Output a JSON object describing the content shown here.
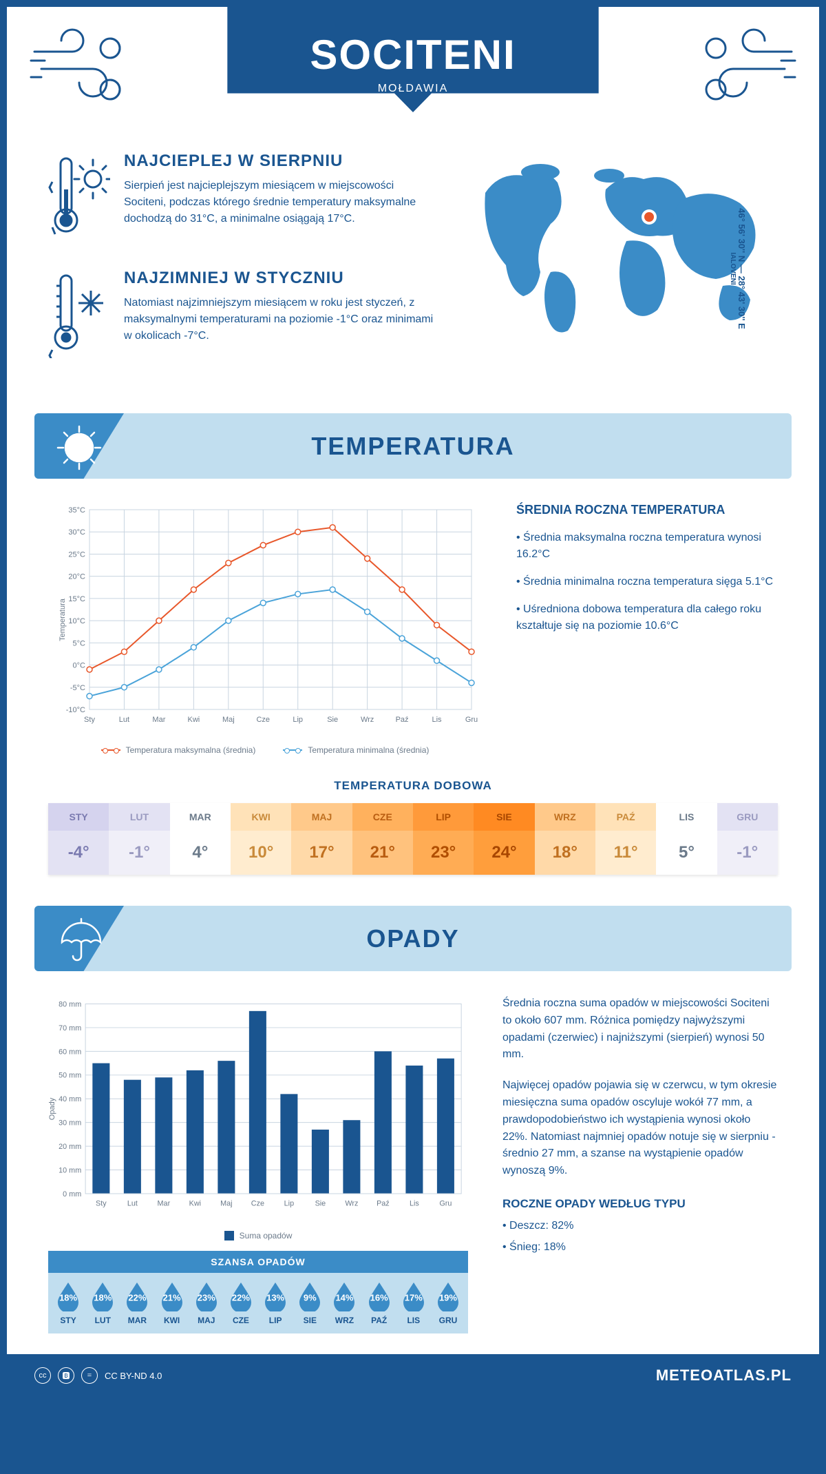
{
  "header": {
    "city": "SOCITENI",
    "country": "MOŁDAWIA"
  },
  "coords": {
    "text": "46° 56' 30'' N — 28° 43' 30'' E",
    "region": "IALOVENI"
  },
  "warmest": {
    "title": "NAJCIEPLEJ W SIERPNIU",
    "text": "Sierpień jest najcieplejszym miesiącem w miejscowości Sociteni, podczas którego średnie temperatury maksymalne dochodzą do 31°C, a minimalne osiągają 17°C."
  },
  "coldest": {
    "title": "NAJZIMNIEJ W STYCZNIU",
    "text": "Natomiast najzimniejszym miesiącem w roku jest styczeń, z maksymalnymi temperaturami na poziomie -1°C oraz minimami w okolicach -7°C."
  },
  "temp_section": {
    "title": "TEMPERATURA",
    "side_title": "ŚREDNIA ROCZNA TEMPERATURA",
    "bullets": [
      "• Średnia maksymalna roczna temperatura wynosi 16.2°C",
      "• Średnia minimalna roczna temperatura sięga 5.1°C",
      "• Uśredniona dobowa temperatura dla całego roku kształtuje się na poziomie 10.6°C"
    ],
    "chart": {
      "type": "line",
      "months": [
        "Sty",
        "Lut",
        "Mar",
        "Kwi",
        "Maj",
        "Cze",
        "Lip",
        "Sie",
        "Wrz",
        "Paź",
        "Lis",
        "Gru"
      ],
      "ylabel": "Temperatura",
      "ylim": [
        -10,
        35
      ],
      "ytick_step": 5,
      "ytick_suffix": "°C",
      "grid_color": "#c8d4e0",
      "background": "#ffffff",
      "series": [
        {
          "name": "Temperatura maksymalna (średnia)",
          "color": "#e8572a",
          "values": [
            -1,
            3,
            10,
            17,
            23,
            27,
            30,
            31,
            24,
            17,
            9,
            3
          ]
        },
        {
          "name": "Temperatura minimalna (średnia)",
          "color": "#4aa3d9",
          "values": [
            -7,
            -5,
            -1,
            4,
            10,
            14,
            16,
            17,
            12,
            6,
            1,
            -4
          ]
        }
      ],
      "marker": "circle",
      "marker_fill": "#ffffff",
      "line_width": 2,
      "label_fontsize": 11
    },
    "daily": {
      "title": "TEMPERATURA DOBOWA",
      "months": [
        "STY",
        "LUT",
        "MAR",
        "KWI",
        "MAJ",
        "CZE",
        "LIP",
        "SIE",
        "WRZ",
        "PAŹ",
        "LIS",
        "GRU"
      ],
      "values": [
        "-4°",
        "-1°",
        "4°",
        "10°",
        "17°",
        "21°",
        "23°",
        "24°",
        "18°",
        "11°",
        "5°",
        "-1°"
      ],
      "header_colors": [
        "#d5d3ee",
        "#e3e2f3",
        "#ffffff",
        "#ffe2b8",
        "#ffc98a",
        "#ffb15d",
        "#ff9a3a",
        "#ff8a22",
        "#ffc98a",
        "#ffe2b8",
        "#ffffff",
        "#e3e2f3"
      ],
      "value_colors": [
        "#e3e2f3",
        "#f0eff8",
        "#ffffff",
        "#ffeccf",
        "#ffd9a8",
        "#ffc27d",
        "#ffac54",
        "#ff9e3c",
        "#ffd9a8",
        "#ffeccf",
        "#ffffff",
        "#f0eff8"
      ],
      "text_colors": [
        "#7a7ab0",
        "#9a9ac0",
        "#6b7a8a",
        "#c98a3a",
        "#c07020",
        "#b85c10",
        "#b04e00",
        "#a84600",
        "#c07020",
        "#c98a3a",
        "#6b7a8a",
        "#9a9ac0"
      ]
    }
  },
  "precip_section": {
    "title": "OPADY",
    "para1": "Średnia roczna suma opadów w miejscowości Sociteni to około 607 mm. Różnica pomiędzy najwyższymi opadami (czerwiec) i najniższymi (sierpień) wynosi 50 mm.",
    "para2": "Najwięcej opadów pojawia się w czerwcu, w tym okresie miesięczna suma opadów oscyluje wokół 77 mm, a prawdopodobieństwo ich wystąpienia wynosi około 22%. Natomiast najmniej opadów notuje się w sierpniu - średnio 27 mm, a szanse na wystąpienie opadów wynoszą 9%.",
    "type_title": "ROCZNE OPADY WEDŁUG TYPU",
    "types": [
      "• Deszcz: 82%",
      "• Śnieg: 18%"
    ],
    "chart": {
      "type": "bar",
      "months": [
        "Sty",
        "Lut",
        "Mar",
        "Kwi",
        "Maj",
        "Cze",
        "Lip",
        "Sie",
        "Wrz",
        "Paź",
        "Lis",
        "Gru"
      ],
      "values": [
        55,
        48,
        49,
        52,
        56,
        77,
        42,
        27,
        31,
        60,
        54,
        57
      ],
      "bar_color": "#1a5590",
      "ylabel": "Opady",
      "ylim": [
        0,
        80
      ],
      "ytick_step": 10,
      "ytick_suffix": " mm",
      "grid_color": "#c8d4e0",
      "background": "#ffffff",
      "bar_width": 0.55,
      "legend_label": "Suma opadów",
      "label_fontsize": 11
    },
    "chance": {
      "title": "SZANSA OPADÓW",
      "months": [
        "STY",
        "LUT",
        "MAR",
        "KWI",
        "MAJ",
        "CZE",
        "LIP",
        "SIE",
        "WRZ",
        "PAŹ",
        "LIS",
        "GRU"
      ],
      "values": [
        "18%",
        "18%",
        "22%",
        "21%",
        "23%",
        "22%",
        "13%",
        "9%",
        "14%",
        "16%",
        "17%",
        "19%"
      ],
      "drop_color": "#3b8cc7",
      "header_bg": "#3b8cc7",
      "row_bg": "#c1deef"
    }
  },
  "footer": {
    "license": "CC BY-ND 4.0",
    "site": "METEOATLAS.PL"
  },
  "palette": {
    "primary": "#1a5590",
    "light": "#c1deef",
    "mid": "#3b8cc7",
    "orange": "#e8572a",
    "blue": "#4aa3d9"
  }
}
